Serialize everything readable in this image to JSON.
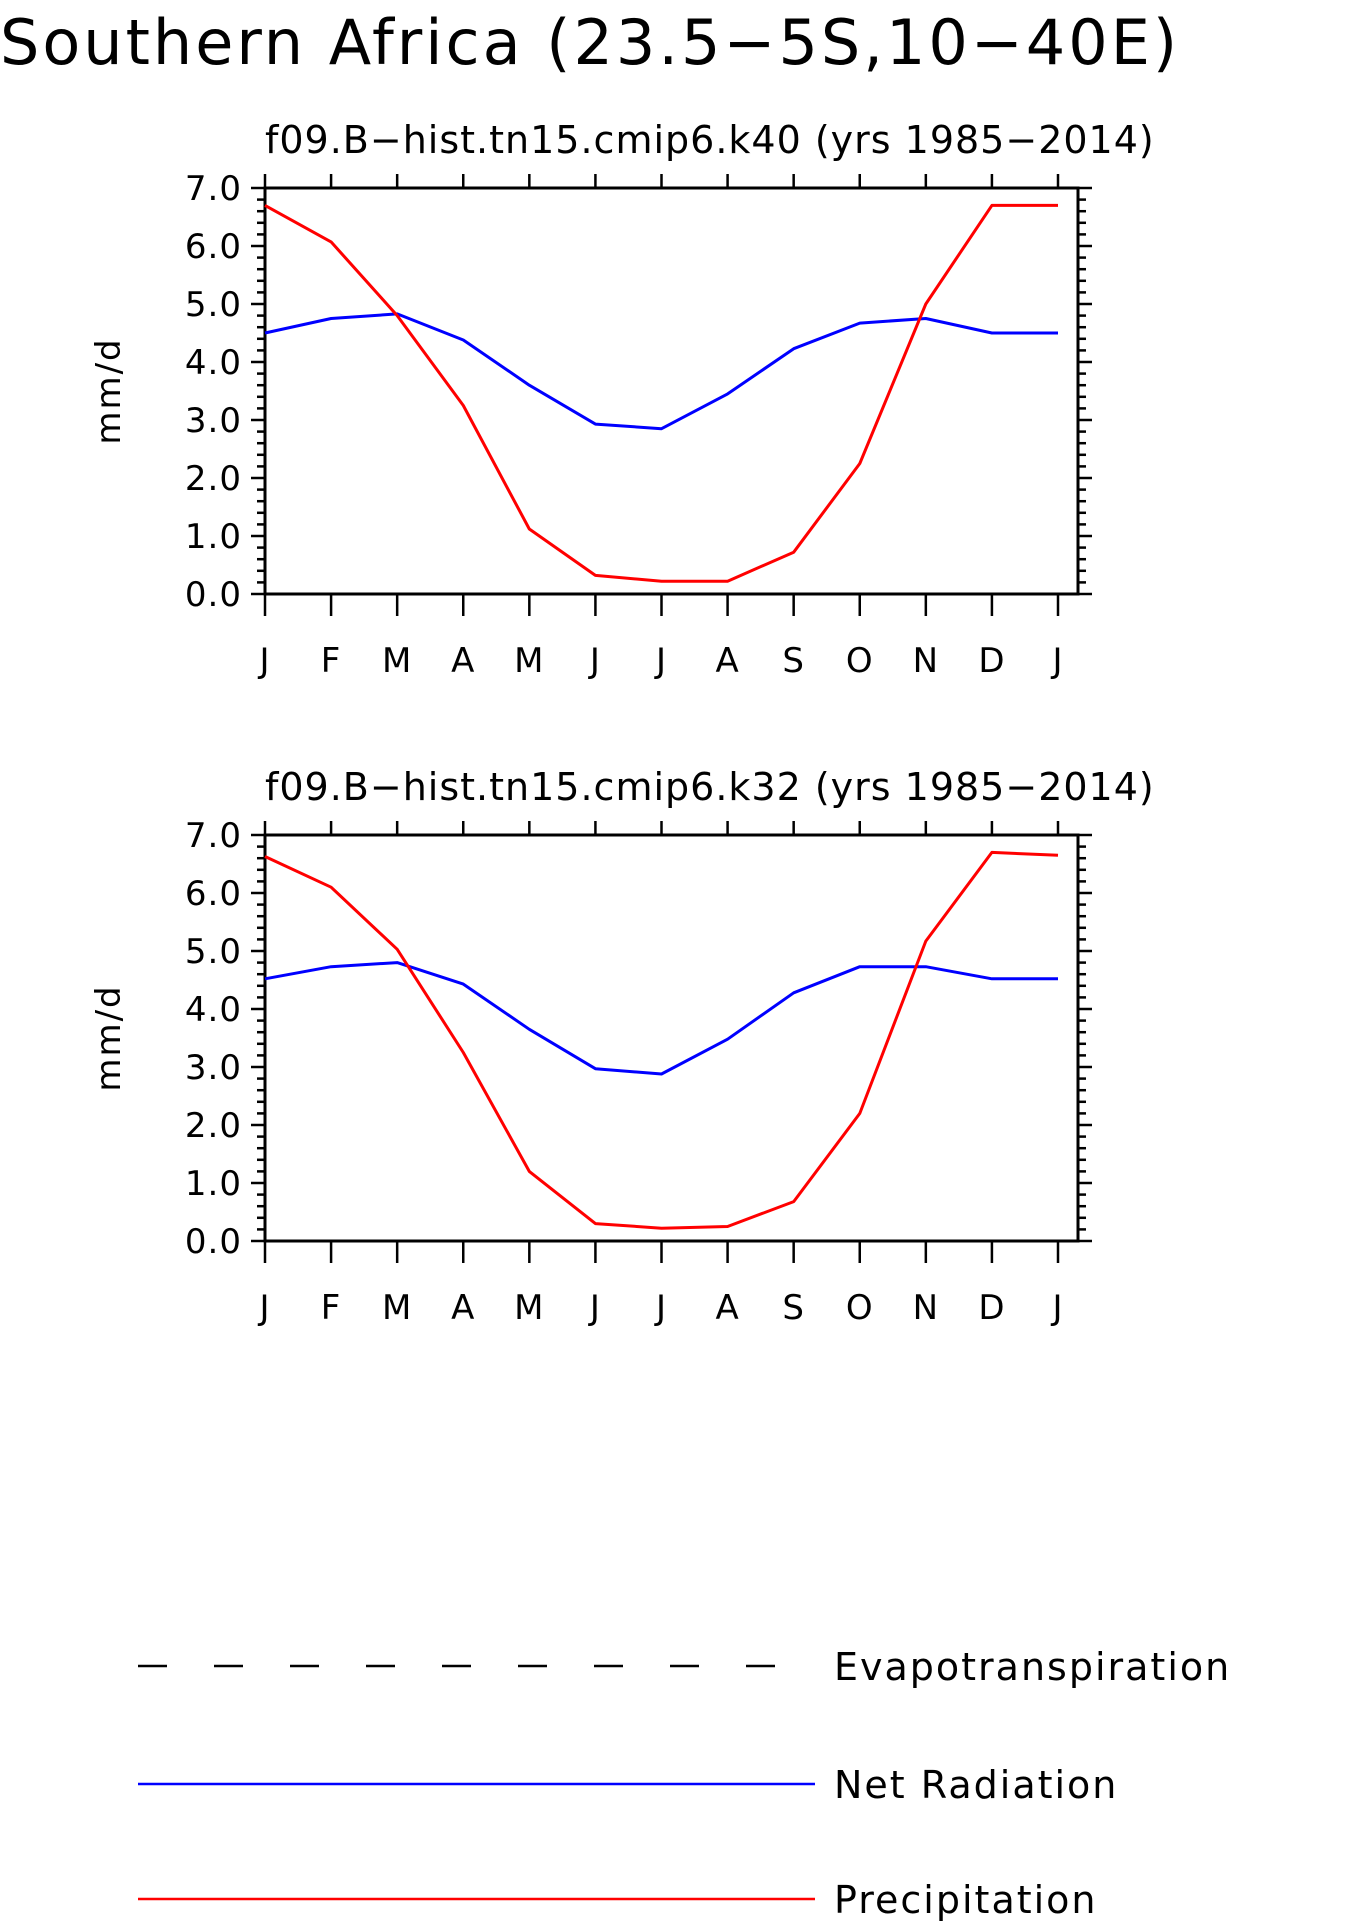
{
  "page_title": "Southern Africa (23.5−5S,10−40E)",
  "legend": [
    {
      "label": "Evapotranspiration",
      "color": "#000000",
      "style": "dashed"
    },
    {
      "label": "Net Radiation",
      "color": "#0000ff",
      "style": "solid"
    },
    {
      "label": "Precipitation",
      "color": "#ff0000",
      "style": "solid"
    }
  ],
  "chart_data": [
    {
      "type": "line",
      "title": "f09.B−hist.tn15.cmip6.k40 (yrs 1985−2014)",
      "xlabel": "",
      "ylabel": "mm/d",
      "ylim": [
        0,
        7
      ],
      "grid": false,
      "categories": [
        "J",
        "F",
        "M",
        "A",
        "M",
        "J",
        "J",
        "A",
        "S",
        "O",
        "N",
        "D",
        "J"
      ],
      "yticks": [
        "0.0",
        "1.0",
        "2.0",
        "3.0",
        "4.0",
        "5.0",
        "6.0",
        "7.0"
      ],
      "series": [
        {
          "name": "Net Radiation",
          "color": "#0000ff",
          "values": [
            4.5,
            4.75,
            4.83,
            4.38,
            3.6,
            2.93,
            2.85,
            3.45,
            4.23,
            4.67,
            4.75,
            4.5,
            4.5
          ]
        },
        {
          "name": "Precipitation",
          "color": "#ff0000",
          "values": [
            6.7,
            6.07,
            4.8,
            3.25,
            1.12,
            0.32,
            0.22,
            0.22,
            0.72,
            2.25,
            5.0,
            6.7,
            6.7
          ]
        }
      ]
    },
    {
      "type": "line",
      "title": "f09.B−hist.tn15.cmip6.k32 (yrs 1985−2014)",
      "xlabel": "",
      "ylabel": "mm/d",
      "ylim": [
        0,
        7
      ],
      "grid": false,
      "categories": [
        "J",
        "F",
        "M",
        "A",
        "M",
        "J",
        "J",
        "A",
        "S",
        "O",
        "N",
        "D",
        "J"
      ],
      "yticks": [
        "0.0",
        "1.0",
        "2.0",
        "3.0",
        "4.0",
        "5.0",
        "6.0",
        "7.0"
      ],
      "series": [
        {
          "name": "Net Radiation",
          "color": "#0000ff",
          "values": [
            4.52,
            4.73,
            4.8,
            4.43,
            3.65,
            2.97,
            2.88,
            3.48,
            4.28,
            4.73,
            4.73,
            4.52,
            4.52
          ]
        },
        {
          "name": "Precipitation",
          "color": "#ff0000",
          "values": [
            6.63,
            6.1,
            5.03,
            3.25,
            1.2,
            0.3,
            0.22,
            0.25,
            0.68,
            2.2,
            5.17,
            6.7,
            6.65
          ]
        }
      ]
    }
  ]
}
